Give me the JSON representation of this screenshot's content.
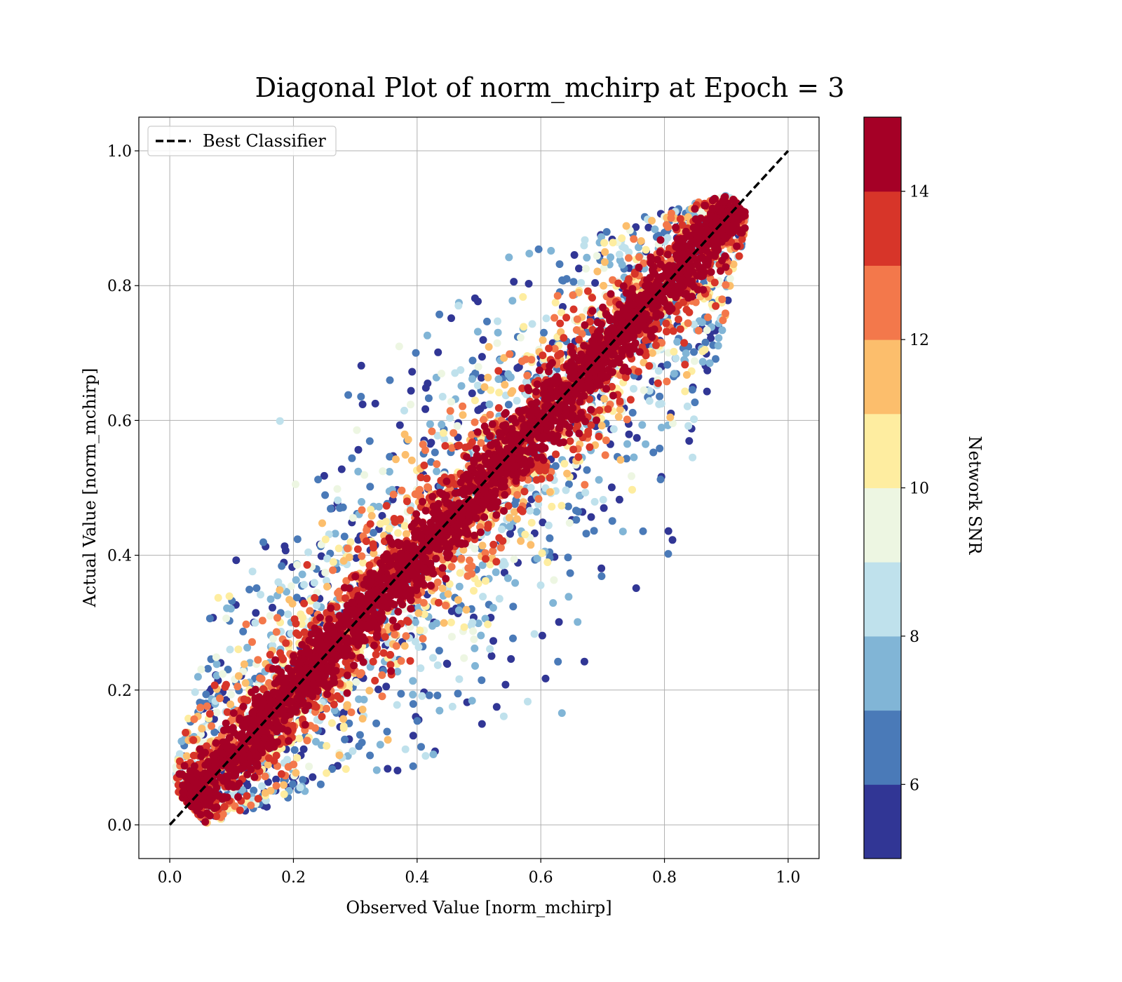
{
  "chart_data": {
    "type": "scatter",
    "title": "Diagonal Plot of norm_mchirp at Epoch = 3",
    "xlabel": "Observed Value [norm_mchirp]",
    "ylabel": "Actual Value [norm_mchirp]",
    "xlim": [
      -0.05,
      1.05
    ],
    "ylim": [
      -0.05,
      1.05
    ],
    "xticks": [
      "0.0",
      "0.2",
      "0.4",
      "0.6",
      "0.8",
      "1.0"
    ],
    "yticks": [
      "0.0",
      "0.2",
      "0.4",
      "0.6",
      "0.8",
      "1.0"
    ],
    "xtick_values": [
      0.0,
      0.2,
      0.4,
      0.6,
      0.8,
      1.0
    ],
    "ytick_values": [
      0.0,
      0.2,
      0.4,
      0.6,
      0.8,
      1.0
    ],
    "grid": true,
    "legend": {
      "placement": "upper-left",
      "entries": [
        "Best Classifier"
      ]
    },
    "reference_line": {
      "name": "Best Classifier",
      "x": [
        0.0,
        1.0
      ],
      "y": [
        0.0,
        1.0
      ],
      "style": "dashed",
      "color": "#000000"
    },
    "colorbar": {
      "label": "Network SNR",
      "range": [
        5,
        15
      ],
      "ticks": [
        "6",
        "8",
        "10",
        "12",
        "14"
      ],
      "tick_values": [
        6,
        8,
        10,
        12,
        14
      ],
      "bins": [
        {
          "from": 5,
          "to": 6,
          "color": "#313695"
        },
        {
          "from": 6,
          "to": 7,
          "color": "#4a7ab8"
        },
        {
          "from": 7,
          "to": 8,
          "color": "#81b5d6"
        },
        {
          "from": 8,
          "to": 9,
          "color": "#bfe1ec"
        },
        {
          "from": 9,
          "to": 10,
          "color": "#edf6e2"
        },
        {
          "from": 10,
          "to": 11,
          "color": "#feeda0"
        },
        {
          "from": 11,
          "to": 12,
          "color": "#fcbe6c"
        },
        {
          "from": 12,
          "to": 13,
          "color": "#f3784b"
        },
        {
          "from": 13,
          "to": 14,
          "color": "#d73529"
        },
        {
          "from": 14,
          "to": 15,
          "color": "#a50026"
        }
      ]
    },
    "series": [
      {
        "description": "dense point cloud around diagonal; low SNR points scatter widely, high SNR points lie close to y = x",
        "band_points": [
          {
            "snr_bin": 14,
            "width": 0.06
          },
          {
            "snr_bin": 13,
            "width": 0.11
          },
          {
            "snr_bin": 12,
            "width": 0.15
          },
          {
            "snr_bin": 11,
            "width": 0.18
          },
          {
            "snr_bin": 10,
            "width": 0.21
          },
          {
            "snr_bin": 9,
            "width": 0.24
          },
          {
            "snr_bin": 8,
            "width": 0.28
          },
          {
            "snr_bin": 7,
            "width": 0.32
          },
          {
            "snr_bin": 6,
            "width": 0.37
          },
          {
            "snr_bin": 5,
            "width": 0.42
          }
        ]
      }
    ]
  }
}
